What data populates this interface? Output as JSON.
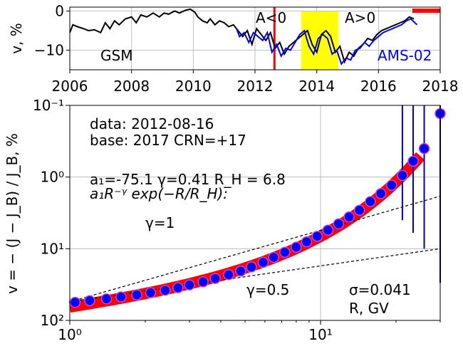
{
  "chart_data": [
    {
      "type": "line",
      "xlim": [
        2006,
        2018
      ],
      "ylim": [
        -15,
        1
      ],
      "ylabel": "v, %",
      "x_ticks": [
        2006,
        2008,
        2010,
        2012,
        2014,
        2016,
        2018
      ],
      "y_ticks": [
        0,
        -10
      ],
      "y_tick_labels": [
        "0",
        "−10"
      ],
      "grid": true,
      "annotations": {
        "gsm": "GSM",
        "ams": "AMS-02",
        "a_neg": "A<0",
        "a_pos": "A>0"
      },
      "markers": {
        "red_line_x": 2012.63,
        "yellow_span": [
          2013.5,
          2014.7
        ],
        "red_bar": [
          2017.1,
          2018.0
        ]
      },
      "series": [
        {
          "name": "GSM",
          "color": "#000000",
          "x": [
            2006.0,
            2006.1,
            2006.25,
            2006.45,
            2006.6,
            2006.8,
            2007.0,
            2007.15,
            2007.3,
            2007.45,
            2007.6,
            2007.8,
            2008.0,
            2008.15,
            2008.3,
            2008.5,
            2008.7,
            2008.9,
            2009.05,
            2009.2,
            2009.4,
            2009.55,
            2009.75,
            2009.9,
            2010.05,
            2010.15,
            2010.3,
            2010.45,
            2010.55,
            2010.7,
            2010.85,
            2011.0,
            2011.15,
            2011.3,
            2011.45,
            2011.6,
            2011.75,
            2011.9,
            2012.05,
            2012.2,
            2012.35,
            2012.5,
            2012.65,
            2012.8,
            2012.95,
            2013.1,
            2013.25,
            2013.4,
            2013.55,
            2013.7,
            2013.85,
            2014.0,
            2014.15,
            2014.3,
            2014.45,
            2014.6,
            2014.75,
            2014.9,
            2015.05,
            2015.2,
            2015.35,
            2015.5,
            2015.65,
            2015.8,
            2015.95,
            2016.1,
            2016.25,
            2016.4,
            2016.55,
            2016.7,
            2016.85,
            2017.0,
            2017.15
          ],
          "y": [
            -5.5,
            -3.5,
            -4.0,
            -4.5,
            -5.0,
            -4.8,
            -5.5,
            -3.0,
            -4.5,
            -2.5,
            -3.5,
            -2.0,
            -1.5,
            -3.0,
            -1.0,
            -1.5,
            -0.5,
            -1.5,
            -0.5,
            -0.8,
            0.0,
            -0.5,
            0.2,
            0.5,
            -0.3,
            -1.5,
            -2.5,
            -3.0,
            -2.0,
            -3.5,
            -2.5,
            -3.0,
            -4.0,
            -3.5,
            -5.0,
            -6.5,
            -5.0,
            -8.5,
            -4.5,
            -6.0,
            -7.5,
            -5.5,
            -9.5,
            -8.0,
            -11.0,
            -9.0,
            -8.0,
            -7.0,
            -6.0,
            -5.0,
            -8.5,
            -10.5,
            -6.0,
            -5.0,
            -6.5,
            -10.5,
            -9.0,
            -13.0,
            -10.5,
            -11.5,
            -9.5,
            -8.5,
            -7.0,
            -7.5,
            -6.0,
            -5.0,
            -4.5,
            -4.0,
            -3.5,
            -3.0,
            -2.5,
            -1.5,
            -2.0
          ]
        },
        {
          "name": "AMS-02",
          "color": "#0000ff",
          "x": [
            2011.4,
            2011.5,
            2011.65,
            2011.8,
            2011.95,
            2012.1,
            2012.25,
            2012.4,
            2012.55,
            2012.7,
            2012.85,
            2013.0,
            2013.15,
            2013.3,
            2013.45,
            2013.6,
            2013.75,
            2013.9,
            2014.05,
            2014.2,
            2014.35,
            2014.5,
            2014.65,
            2014.8,
            2014.95,
            2015.1,
            2015.25,
            2015.4,
            2015.55,
            2015.7,
            2015.85,
            2016.0,
            2016.15,
            2016.3,
            2016.45,
            2016.6,
            2016.75,
            2016.9,
            2017.05,
            2017.25
          ],
          "y": [
            -4.5,
            -6.5,
            -5.5,
            -8.0,
            -5.5,
            -6.5,
            -7.5,
            -5.5,
            -10.5,
            -8.5,
            -11.5,
            -9.5,
            -10.0,
            -8.0,
            -6.0,
            -5.0,
            -9.0,
            -11.0,
            -7.0,
            -6.0,
            -7.0,
            -11.0,
            -10.0,
            -13.5,
            -12.0,
            -12.5,
            -10.0,
            -9.5,
            -8.0,
            -9.0,
            -7.5,
            -6.5,
            -5.5,
            -5.0,
            -4.5,
            -4.0,
            -3.5,
            -2.5,
            -2.0,
            -3.5
          ]
        }
      ]
    },
    {
      "type": "scatter",
      "x_scale": "log",
      "y_scale": "log",
      "y_inverted": true,
      "xlim": [
        1,
        30
      ],
      "ylim": [
        0.1,
        100
      ],
      "xlabel": "R, GV",
      "ylabel": "v = − (J − J_B) / J_B, %",
      "x_tick_labels": [
        "10⁰",
        "10¹"
      ],
      "y_tick_labels": [
        "10⁻¹",
        "10⁰",
        "10¹",
        "10²"
      ],
      "grid": true,
      "texts": {
        "data": "data: 2012-08-16",
        "base": "base: 2017   CRN=+17",
        "fit": "a₁=-75.1  γ=0.41  R_H = 6.8",
        "formula": "a₁R⁻ᵞ exp(−R/R_H):",
        "gamma1": "γ=1",
        "gamma05": "γ=0.5",
        "sigma": "σ=0.041",
        "rlabel": "R, GV"
      },
      "points": {
        "R": [
          1.05,
          1.2,
          1.4,
          1.6,
          1.85,
          2.1,
          2.4,
          2.7,
          3.0,
          3.4,
          3.8,
          4.3,
          4.8,
          5.3,
          5.9,
          6.5,
          7.2,
          8.0,
          8.8,
          9.7,
          10.7,
          11.8,
          13.0,
          14.3,
          15.8,
          17.4,
          19.2,
          21.2,
          23.4,
          25.9,
          30.0
        ],
        "v": [
          56.0,
          53.0,
          50.0,
          47.0,
          44.0,
          41.0,
          38.0,
          35.0,
          32.0,
          29.0,
          26.0,
          23.0,
          20.5,
          18.0,
          15.5,
          13.2,
          11.2,
          9.5,
          8.0,
          6.7,
          5.5,
          4.5,
          3.6,
          2.9,
          2.2,
          1.7,
          1.3,
          0.95,
          0.6,
          0.4,
          0.13
        ],
        "err_R": [
          21.2,
          23.4,
          25.9,
          30.0
        ],
        "err_lo": [
          0.1,
          0.1,
          0.1,
          0.1
        ],
        "err_hi": [
          4.0,
          6.0,
          10.0,
          30.0
        ]
      },
      "fit_line": {
        "a1": -75.1,
        "gamma": 0.41,
        "RH": 6.8,
        "Rmax": 25.0
      },
      "ref_lines": [
        {
          "label": "γ=1",
          "R": [
            1.0,
            30.0
          ],
          "v": [
            55.0,
            1.85
          ]
        },
        {
          "label": "γ=0.5",
          "R": [
            1.0,
            30.0
          ],
          "v": [
            55.0,
            10.0
          ]
        }
      ]
    }
  ]
}
